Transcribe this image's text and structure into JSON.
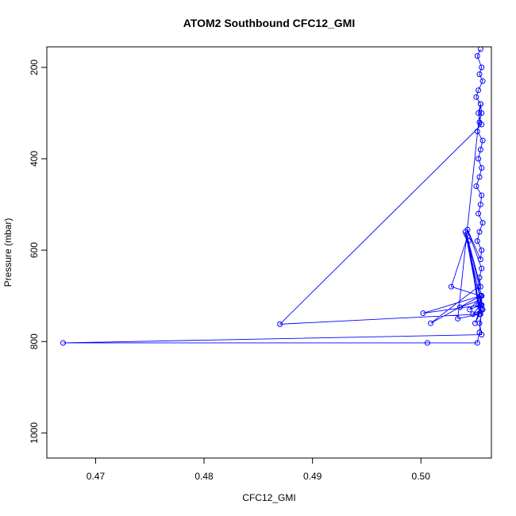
{
  "chart_data": {
    "type": "line",
    "title": "ATOM2 Southbound CFC12_GMI",
    "xlabel": "CFC12_GMI",
    "ylabel": "Pressure (mbar)",
    "xlim": [
      0.4655,
      0.5065
    ],
    "ylim": [
      1055,
      155
    ],
    "y_reversed": true,
    "x_ticks": [
      0.47,
      0.48,
      0.49,
      0.5
    ],
    "x_tick_labels": [
      "0.47",
      "0.48",
      "0.49",
      "0.50"
    ],
    "y_ticks": [
      200,
      400,
      600,
      800,
      1000
    ],
    "y_tick_labels": [
      "200",
      "400",
      "600",
      "800",
      "1000"
    ],
    "series_color": "#0000ff",
    "markers": "open-circle",
    "grid": false,
    "legend": "none",
    "series": [
      {
        "x": [
          0.5055,
          0.5052,
          0.5056,
          0.5054,
          0.5057,
          0.5053,
          0.5051,
          0.5055,
          0.5056,
          0.5054,
          0.5052,
          0.5057,
          0.5055,
          0.5053,
          0.5056,
          0.5054,
          0.5051,
          0.5056,
          0.5055,
          0.5053,
          0.5057,
          0.5054,
          0.5052,
          0.5056,
          0.5055,
          0.5043,
          0.5056,
          0.5054,
          0.5055,
          0.5042,
          0.5056,
          0.5053,
          0.5044,
          0.5055,
          0.5041,
          0.5056,
          0.5054,
          0.5043,
          0.5028,
          0.5055,
          0.5057,
          0.5054,
          0.5056,
          0.467,
          0.5006,
          0.5052,
          0.5054,
          0.5056,
          0.5048,
          0.5055,
          0.5045,
          0.5056,
          0.5054,
          0.5036,
          0.5055,
          0.5009,
          0.5053,
          0.5056,
          0.5002,
          0.5055,
          0.5054,
          0.487,
          0.5056,
          0.5053,
          0.5055,
          0.5034,
          0.5054,
          0.505,
          0.5056,
          0.5055
        ],
        "y": [
          160,
          175,
          200,
          215,
          230,
          250,
          265,
          280,
          300,
          320,
          340,
          360,
          380,
          400,
          420,
          440,
          460,
          480,
          500,
          520,
          540,
          560,
          580,
          600,
          620,
          555,
          640,
          660,
          680,
          565,
          700,
          720,
          580,
          740,
          560,
          720,
          740,
          570,
          680,
          700,
          730,
          760,
          785,
          803,
          803,
          803,
          780,
          730,
          740,
          720,
          730,
          700,
          710,
          725,
          700,
          760,
          680,
          720,
          738,
          700,
          740,
          762,
          325,
          300,
          280,
          750,
          740,
          760,
          720,
          700
        ]
      }
    ]
  }
}
